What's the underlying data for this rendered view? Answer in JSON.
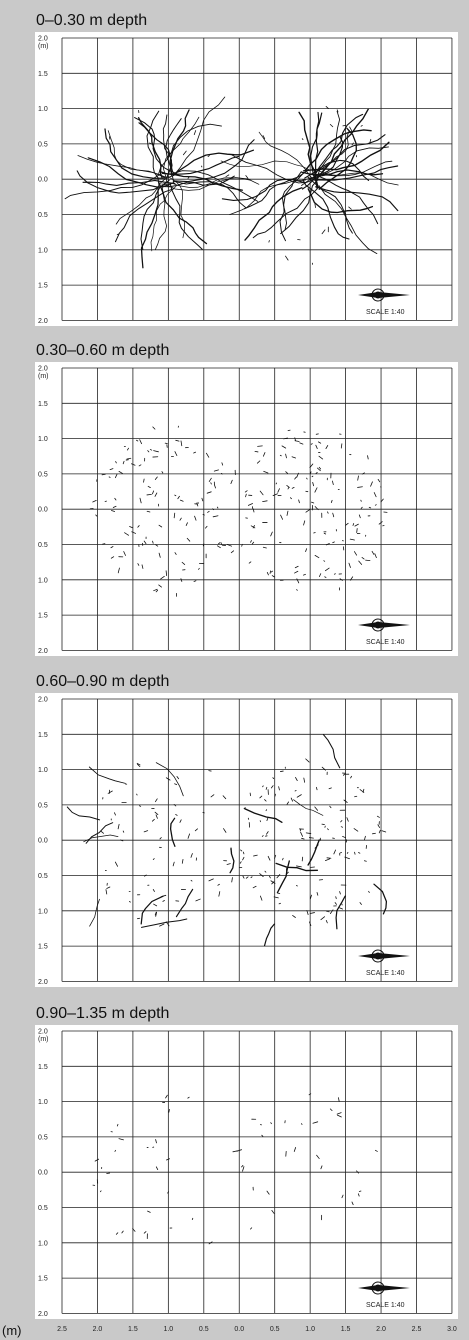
{
  "panels": [
    {
      "title": "0–0.30 m depth",
      "y_unit": "(m)",
      "y_tick_labels": [
        "2.0",
        "1.5",
        "1.0",
        "0.5",
        "0.0",
        "0.5",
        "1.0",
        "1.5",
        "2.0"
      ],
      "scale": "SCALE 1:40"
    },
    {
      "title": "0.30–0.60 m depth",
      "y_unit": "(m)",
      "y_tick_labels": [
        "2.0",
        "1.5",
        "1.0",
        "0.5",
        "0.0",
        "0.5",
        "1.0",
        "1.5",
        "2.0"
      ],
      "scale": "SCALE 1:40"
    },
    {
      "title": "0.60–0.90 m depth",
      "y_tick_labels": [
        "2.0",
        "1.5",
        "1.0",
        "0.5",
        "0.0",
        "0.5",
        "1.0",
        "1.5",
        "2.0"
      ],
      "scale": "SCALE 1:40"
    },
    {
      "title": "0.90–1.35 m depth",
      "y_unit": "(m)",
      "y_tick_labels": [
        "2.0",
        "1.5",
        "1.0",
        "0.5",
        "0.0",
        "0.5",
        "1.0",
        "1.5",
        "2.0"
      ],
      "scale": "SCALE 1:40"
    }
  ],
  "x_axis": {
    "unit": "(m)",
    "tick_labels": [
      "2.5",
      "2.0",
      "1.5",
      "1.0",
      "0.5",
      "0.0",
      "0.5",
      "1.0",
      "1.5",
      "2.0",
      "2.5",
      "3.0"
    ]
  }
}
